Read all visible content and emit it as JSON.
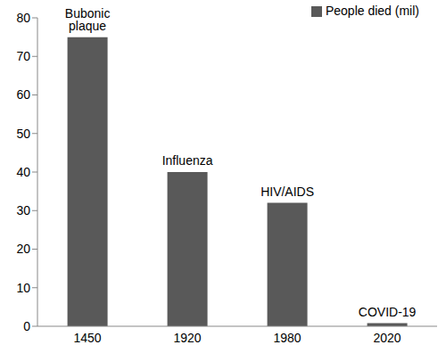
{
  "chart_data": {
    "type": "bar",
    "categories": [
      "1450",
      "1920",
      "1980",
      "2020"
    ],
    "annotations": [
      "Bubonic plaque",
      "Influenza",
      "HIV/AIDS",
      "COVID-19"
    ],
    "series": [
      {
        "name": "People died (mil)",
        "color": "#595959",
        "values": [
          75,
          40,
          32,
          0.8
        ]
      }
    ],
    "ylim": [
      0,
      80
    ],
    "yticks": [
      0,
      10,
      20,
      30,
      40,
      50,
      60,
      70,
      80
    ],
    "grid": false,
    "legend": "top-right",
    "data_labels": false
  }
}
